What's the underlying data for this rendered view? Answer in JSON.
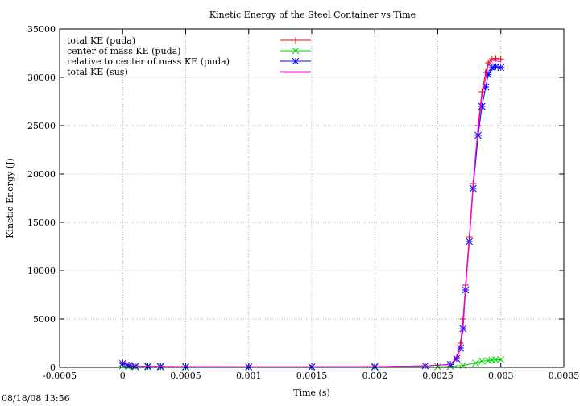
{
  "timestamp": "08/18/08 13:56",
  "chart_data": {
    "type": "line",
    "title": "Kinetic Energy of the Steel Container vs Time",
    "xlabel": "Time (s)",
    "ylabel": "Kinetic Energy (J)",
    "xlim": [
      -0.0005,
      0.0035
    ],
    "ylim": [
      0,
      35000
    ],
    "grid": true,
    "legend_position": "top-left",
    "x_ticks": [
      -0.0005,
      0,
      0.0005,
      0.001,
      0.0015,
      0.002,
      0.0025,
      0.003,
      0.0035
    ],
    "x_tick_labels": [
      "-0.0005",
      "0",
      "0.0005",
      "0.001",
      "0.0015",
      "0.002",
      "0.0025",
      "0.003",
      "0.0035"
    ],
    "y_ticks": [
      0,
      5000,
      10000,
      15000,
      20000,
      25000,
      30000,
      35000
    ],
    "y_tick_labels": [
      "0",
      "5000",
      "10000",
      "15000",
      "20000",
      "25000",
      "30000",
      "35000"
    ],
    "series": [
      {
        "name": "total KE (puda)",
        "color": "#ff0000",
        "marker": "plus",
        "x": [
          0,
          5e-05,
          0.0001,
          0.0002,
          0.0003,
          0.0005,
          0.001,
          0.0015,
          0.002,
          0.0024,
          0.0026,
          0.00265,
          0.00268,
          0.0027,
          0.00272,
          0.00275,
          0.00278,
          0.00282,
          0.00285,
          0.00288,
          0.0029,
          0.00293,
          0.00296,
          0.003
        ],
        "y": [
          500,
          250,
          150,
          120,
          100,
          80,
          60,
          60,
          80,
          150,
          300,
          1000,
          2500,
          5000,
          8500,
          13500,
          19000,
          25000,
          28500,
          30500,
          31500,
          31900,
          31950,
          31900
        ]
      },
      {
        "name": "center of mass KE (puda)",
        "color": "#00cc00",
        "marker": "x",
        "x": [
          0,
          5e-05,
          0.0001,
          0.0002,
          0.0003,
          0.0005,
          0.001,
          0.0015,
          0.002,
          0.0025,
          0.0026,
          0.0027,
          0.0028,
          0.00285,
          0.0029,
          0.00293,
          0.00296,
          0.003
        ],
        "y": [
          150,
          80,
          50,
          40,
          30,
          20,
          15,
          15,
          20,
          50,
          100,
          200,
          450,
          650,
          700,
          750,
          780,
          800
        ]
      },
      {
        "name": "relative to center of mass KE (puda)",
        "color": "#0000ff",
        "marker": "star",
        "x": [
          0,
          5e-05,
          0.0001,
          0.0002,
          0.0003,
          0.0005,
          0.001,
          0.0015,
          0.002,
          0.0024,
          0.0026,
          0.00265,
          0.00268,
          0.0027,
          0.00272,
          0.00275,
          0.00278,
          0.00282,
          0.00285,
          0.00288,
          0.0029,
          0.00293,
          0.00296,
          0.003
        ],
        "y": [
          400,
          200,
          120,
          100,
          80,
          60,
          50,
          50,
          70,
          150,
          300,
          900,
          2000,
          4000,
          8000,
          13000,
          18500,
          24000,
          27000,
          29000,
          30300,
          31000,
          31100,
          31000
        ]
      },
      {
        "name": "total KE (sus)",
        "color": "#ff00ff",
        "marker": "none",
        "x": [
          0,
          5e-05,
          0.0001,
          0.0002,
          0.0005,
          0.001,
          0.0015,
          0.002,
          0.0024,
          0.0026,
          0.00265,
          0.00268,
          0.0027,
          0.00272,
          0.00275,
          0.00278,
          0.0028,
          0.00285,
          0.0029,
          0.00293,
          0.00296,
          0.003
        ],
        "y": [
          600,
          300,
          150,
          100,
          70,
          50,
          50,
          70,
          150,
          300,
          800,
          2000,
          4500,
          8000,
          13000,
          18500,
          22000,
          28000,
          31200,
          31800,
          31700,
          31600
        ]
      }
    ]
  }
}
